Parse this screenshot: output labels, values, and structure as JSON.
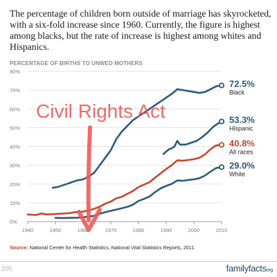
{
  "intro_text": "The percentage of children born outside of marriage has skyrocketed, with a six-fold increase since 1960. Currently, the figure is highest among blacks, but the rate of increase is highest among whites and Hispanics.",
  "source": {
    "label": "Source:",
    "text": "National Center for Health Statistics, National Vital Statistics Reports, 2011."
  },
  "footer": {
    "page_number": "205",
    "brand": "familyfacts",
    "brand_suffix": "org"
  },
  "colors": {
    "black": "#2c5a78",
    "hispanic": "#2c5a78",
    "all_races": "#c8452b",
    "white": "#2c5a78",
    "annotation": "#ee5a5a",
    "grid": "#e2e2e2",
    "axis": "#9a9a9a"
  },
  "chart_data": {
    "type": "line",
    "title": "PERCENTAGE OF BIRTHS TO UNWED MOTHERS",
    "xlabel": "",
    "ylabel": "",
    "xlim": [
      1940,
      2010
    ],
    "ylim": [
      0,
      80
    ],
    "x_ticks": [
      1940,
      1950,
      1960,
      1970,
      1980,
      1990,
      2000,
      2010
    ],
    "y_ticks": [
      0,
      10,
      20,
      30,
      40,
      50,
      60,
      70,
      80
    ],
    "y_tick_labels": [
      "0%",
      "10%",
      "20%",
      "30%",
      "40%",
      "50%",
      "60%",
      "70%",
      "80%"
    ],
    "grid": true,
    "series": [
      {
        "name": "Black",
        "label_value": "72.5%",
        "color_key": "black",
        "points": [
          [
            1949,
            18
          ],
          [
            1951,
            18.5
          ],
          [
            1954,
            20
          ],
          [
            1956,
            21
          ],
          [
            1958,
            22
          ],
          [
            1960,
            22.5
          ],
          [
            1962,
            24
          ],
          [
            1964,
            26
          ],
          [
            1966,
            30
          ],
          [
            1968,
            34
          ],
          [
            1970,
            38
          ],
          [
            1972,
            44
          ],
          [
            1974,
            48
          ],
          [
            1976,
            51
          ],
          [
            1978,
            54
          ],
          [
            1980,
            56
          ],
          [
            1982,
            58
          ],
          [
            1984,
            60
          ],
          [
            1986,
            62
          ],
          [
            1988,
            64
          ],
          [
            1990,
            66
          ],
          [
            1992,
            68
          ],
          [
            1994,
            70.5
          ],
          [
            1996,
            70
          ],
          [
            1998,
            69.5
          ],
          [
            2000,
            69
          ],
          [
            2002,
            68.5
          ],
          [
            2004,
            69
          ],
          [
            2006,
            70.5
          ],
          [
            2008,
            72
          ],
          [
            2010,
            72.5
          ]
        ]
      },
      {
        "name": "Hispanic",
        "label_value": "53.3%",
        "color_key": "hispanic",
        "points": [
          [
            1989,
            36
          ],
          [
            1991,
            38.5
          ],
          [
            1992,
            39
          ],
          [
            1993,
            40
          ],
          [
            1994,
            43
          ],
          [
            1995,
            41
          ],
          [
            1997,
            41
          ],
          [
            1999,
            42
          ],
          [
            2001,
            43
          ],
          [
            2003,
            45
          ],
          [
            2005,
            47.5
          ],
          [
            2007,
            50.5
          ],
          [
            2009,
            52.5
          ],
          [
            2010,
            53.3
          ]
        ]
      },
      {
        "name": "All races",
        "label_value": "40.8%",
        "color_key": "all_races",
        "points": [
          [
            1940,
            3.8
          ],
          [
            1943,
            3.5
          ],
          [
            1945,
            4.3
          ],
          [
            1947,
            3.8
          ],
          [
            1950,
            4
          ],
          [
            1953,
            4.3
          ],
          [
            1955,
            4.5
          ],
          [
            1957,
            5
          ],
          [
            1960,
            5.3
          ],
          [
            1962,
            6
          ],
          [
            1964,
            6.8
          ],
          [
            1966,
            8
          ],
          [
            1968,
            9.5
          ],
          [
            1970,
            10.7
          ],
          [
            1972,
            12.4
          ],
          [
            1974,
            13.2
          ],
          [
            1976,
            14.8
          ],
          [
            1978,
            16.3
          ],
          [
            1980,
            18.4
          ],
          [
            1982,
            19.7
          ],
          [
            1984,
            21
          ],
          [
            1986,
            23.4
          ],
          [
            1988,
            25.7
          ],
          [
            1990,
            28
          ],
          [
            1992,
            30.1
          ],
          [
            1994,
            32.6
          ],
          [
            1996,
            32.4
          ],
          [
            1998,
            32.8
          ],
          [
            2000,
            33.2
          ],
          [
            2002,
            34
          ],
          [
            2004,
            35.8
          ],
          [
            2006,
            38.5
          ],
          [
            2008,
            40.6
          ],
          [
            2010,
            40.8
          ]
        ]
      },
      {
        "name": "White",
        "label_value": "29.0%",
        "color_key": "white",
        "points": [
          [
            1950,
            2
          ],
          [
            1953,
            1.9
          ],
          [
            1955,
            2
          ],
          [
            1958,
            2.1
          ],
          [
            1960,
            2.3
          ],
          [
            1962,
            2.6
          ],
          [
            1964,
            3.1
          ],
          [
            1966,
            4.2
          ],
          [
            1968,
            5
          ],
          [
            1970,
            5.7
          ],
          [
            1972,
            6.4
          ],
          [
            1974,
            7.1
          ],
          [
            1976,
            7.9
          ],
          [
            1978,
            9
          ],
          [
            1980,
            11
          ],
          [
            1982,
            12.1
          ],
          [
            1984,
            13.4
          ],
          [
            1986,
            15.7
          ],
          [
            1988,
            17.7
          ],
          [
            1990,
            19
          ],
          [
            1992,
            20.1
          ],
          [
            1994,
            21.9
          ],
          [
            1996,
            21.7
          ],
          [
            1998,
            22.2
          ],
          [
            2000,
            22.5
          ],
          [
            2002,
            23.1
          ],
          [
            2004,
            24.5
          ],
          [
            2006,
            26.6
          ],
          [
            2008,
            28.5
          ],
          [
            2010,
            29
          ]
        ]
      }
    ],
    "annotation": {
      "text": "Civil Rights Act",
      "x": 1962
    }
  }
}
